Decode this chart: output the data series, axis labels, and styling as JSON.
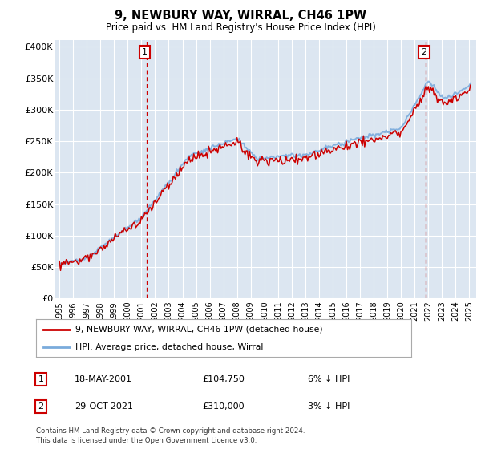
{
  "title": "9, NEWBURY WAY, WIRRAL, CH46 1PW",
  "subtitle": "Price paid vs. HM Land Registry's House Price Index (HPI)",
  "ylabel_ticks": [
    "£0",
    "£50K",
    "£100K",
    "£150K",
    "£200K",
    "£250K",
    "£300K",
    "£350K",
    "£400K"
  ],
  "ytick_vals": [
    0,
    50000,
    100000,
    150000,
    200000,
    250000,
    300000,
    350000,
    400000
  ],
  "ylim": [
    0,
    410000
  ],
  "xlim_start": 1994.7,
  "xlim_end": 2025.5,
  "hpi_color": "#7aabdc",
  "price_color": "#cc0000",
  "sale1_year": 2001.37,
  "sale1_price": 104750,
  "sale2_year": 2021.83,
  "sale2_price": 310000,
  "legend_line1": "9, NEWBURY WAY, WIRRAL, CH46 1PW (detached house)",
  "legend_line2": "HPI: Average price, detached house, Wirral",
  "marker1_label": "18-MAY-2001",
  "marker1_price": "£104,750",
  "marker1_pct": "6% ↓ HPI",
  "marker2_label": "29-OCT-2021",
  "marker2_price": "£310,000",
  "marker2_pct": "3% ↓ HPI",
  "footnote1": "Contains HM Land Registry data © Crown copyright and database right 2024.",
  "footnote2": "This data is licensed under the Open Government Licence v3.0.",
  "bg_color": "#dce6f1"
}
